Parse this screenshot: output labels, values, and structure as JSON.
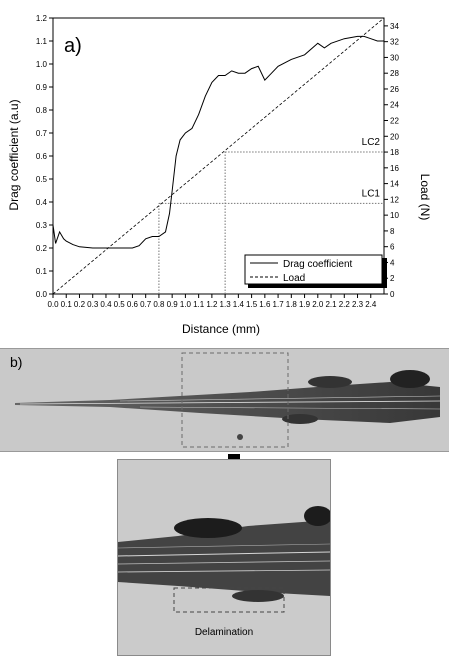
{
  "chart_data": {
    "type": "line",
    "panel_label": "a)",
    "xlabel": "Distance (mm)",
    "ylabel": "Drag coefficient (a.u)",
    "y2label": "Load (N)",
    "xlim": [
      0,
      2.5
    ],
    "ylim": [
      0,
      1.2
    ],
    "y2lim": [
      0,
      35
    ],
    "xticks": [
      "0.0",
      "0.1",
      "0.2",
      "0.3",
      "0.4",
      "0.5",
      "0.6",
      "0.7",
      "0.8",
      "0.9",
      "1.0",
      "1.1",
      "1.2",
      "1.3",
      "1.4",
      "1.5",
      "1.6",
      "1.7",
      "1.8",
      "1.9",
      "2.0",
      "2.1",
      "2.2",
      "2.3",
      "2.4"
    ],
    "yticks": [
      "0.0",
      "0.1",
      "0.2",
      "0.3",
      "0.4",
      "0.5",
      "0.6",
      "0.7",
      "0.8",
      "0.9",
      "1.0",
      "1.1",
      "1.2"
    ],
    "y2ticks": [
      "0",
      "2",
      "4",
      "6",
      "8",
      "10",
      "12",
      "14",
      "16",
      "18",
      "20",
      "22",
      "24",
      "26",
      "28",
      "30",
      "32",
      "34"
    ],
    "legend_position": "bottom-right",
    "series": [
      {
        "name": "Drag coefficient",
        "style": "solid",
        "axis": "left",
        "x": [
          0.0,
          0.02,
          0.05,
          0.08,
          0.1,
          0.15,
          0.2,
          0.3,
          0.4,
          0.5,
          0.55,
          0.6,
          0.65,
          0.7,
          0.75,
          0.8,
          0.85,
          0.88,
          0.9,
          0.93,
          0.96,
          1.0,
          1.05,
          1.1,
          1.15,
          1.2,
          1.25,
          1.3,
          1.35,
          1.4,
          1.45,
          1.5,
          1.55,
          1.6,
          1.65,
          1.7,
          1.8,
          1.9,
          2.0,
          2.05,
          2.1,
          2.2,
          2.3,
          2.35,
          2.4,
          2.45,
          2.5
        ],
        "y": [
          0.3,
          0.22,
          0.27,
          0.24,
          0.23,
          0.215,
          0.205,
          0.2,
          0.2,
          0.2,
          0.2,
          0.2,
          0.21,
          0.24,
          0.25,
          0.25,
          0.27,
          0.35,
          0.45,
          0.6,
          0.67,
          0.7,
          0.72,
          0.78,
          0.86,
          0.92,
          0.95,
          0.95,
          0.97,
          0.96,
          0.96,
          0.98,
          0.99,
          0.93,
          0.96,
          0.99,
          1.02,
          1.04,
          1.09,
          1.07,
          1.09,
          1.11,
          1.12,
          1.12,
          1.11,
          1.1,
          1.1
        ]
      },
      {
        "name": "Load",
        "style": "dashed",
        "axis": "right",
        "x": [
          0,
          2.5
        ],
        "y": [
          0,
          35
        ]
      }
    ],
    "annotations": [
      {
        "text": "LC1",
        "x": 0.8,
        "load": 11.5
      },
      {
        "text": "LC2",
        "x": 1.3,
        "load": 18
      }
    ]
  },
  "micrographs": {
    "panel_label": "b)",
    "zoom_caption": "Delamination"
  },
  "colors": {
    "line": "#000000",
    "guide": "#888888",
    "micrograph_bg": "#c9c9c9",
    "track": "#3a3a3a"
  }
}
